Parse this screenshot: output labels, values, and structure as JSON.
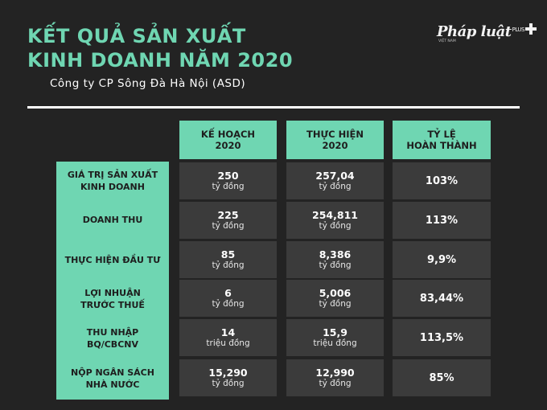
{
  "title": "KẾT QUẢ SẢN XUẤT\nKINH DOANH NĂM 2020",
  "subtitle": "Công ty CP Sông Đà Hà Nội (ASD)",
  "logo": {
    "text": "Pháp luật",
    "plus": "PLUS",
    "tagline": "VIỆT NAM"
  },
  "columns": [
    "KẾ HOẠCH\n2020",
    "THỰC HIỆN\n2020",
    "TỶ LỆ\nHOÀN THÀNH"
  ],
  "rows": [
    {
      "label": "GIÁ TRỊ SẢN XUẤT\nKINH DOANH",
      "plan": "250",
      "plan_unit": "tỷ đồng",
      "actual": "257,04",
      "actual_unit": "tỷ đồng",
      "rate": "103%"
    },
    {
      "label": "DOANH THU",
      "plan": "225",
      "plan_unit": "tỷ đồng",
      "actual": "254,811",
      "actual_unit": "tỷ đồng",
      "rate": "113%"
    },
    {
      "label": "THỰC HIỆN ĐẦU TƯ",
      "plan": "85",
      "plan_unit": "tỷ đồng",
      "actual": "8,386",
      "actual_unit": "tỷ đồng",
      "rate": "9,9%"
    },
    {
      "label": "LỢI NHUẬN\nTRƯỚC THUẾ",
      "plan": "6",
      "plan_unit": "tỷ đồng",
      "actual": "5,006",
      "actual_unit": "tỷ đồng",
      "rate": "83,44%"
    },
    {
      "label": "THU NHẬP\nBQ/CBCNV",
      "plan": "14",
      "plan_unit": "triệu đồng",
      "actual": "15,9",
      "actual_unit": "triệu đồng",
      "rate": "113,5%"
    },
    {
      "label": "NỘP NGÂN SÁCH\nNHÀ NƯỚC",
      "plan": "15,290",
      "plan_unit": "tỷ đồng",
      "actual": "12,990",
      "actual_unit": "tỷ đồng",
      "rate": "85%"
    }
  ],
  "colors": {
    "accent": "#6fd6b2",
    "background": "#232323",
    "cell": "#3b3b3b",
    "text": "#ffffff"
  }
}
